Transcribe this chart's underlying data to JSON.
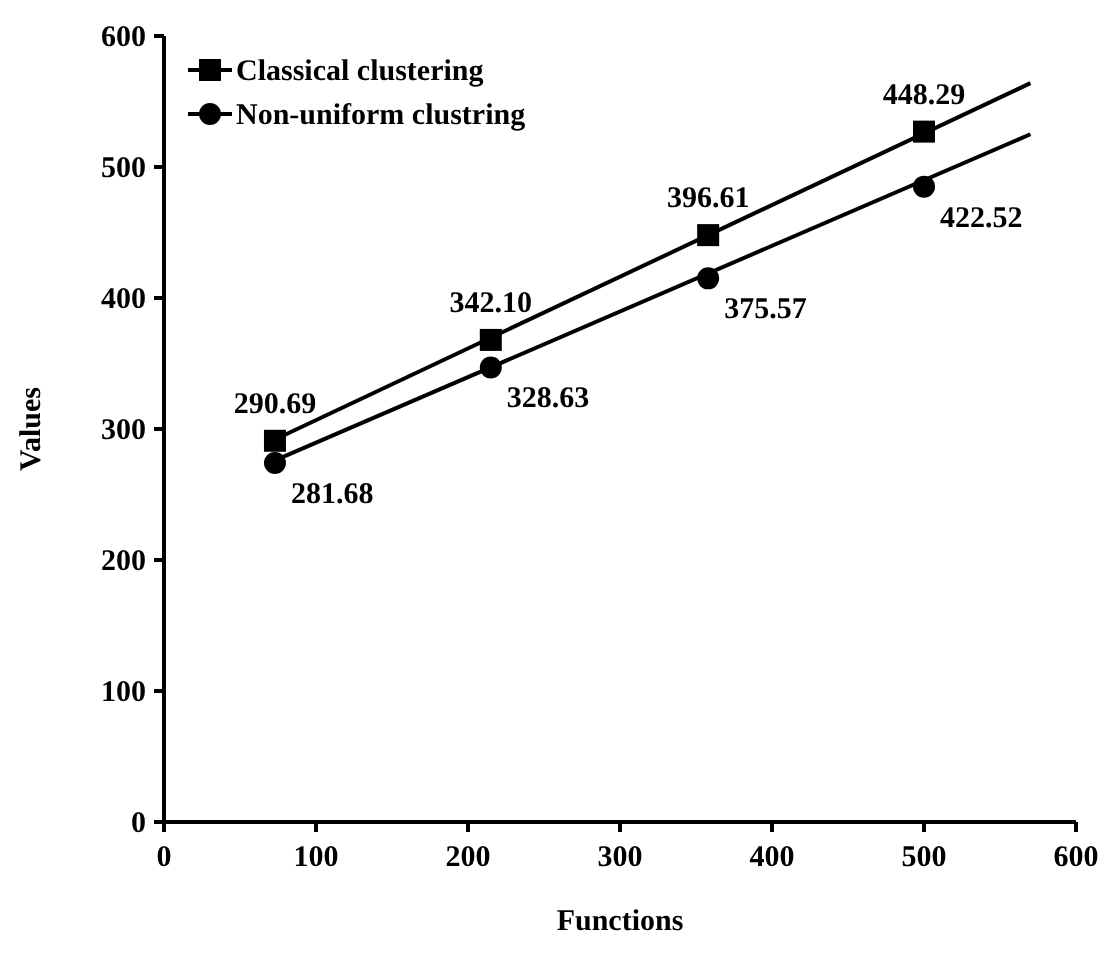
{
  "chart_data": {
    "type": "scatter",
    "xlabel": "Functions",
    "ylabel": "Values",
    "xlim": [
      0,
      600
    ],
    "xticks": [
      0,
      100,
      200,
      300,
      400,
      500,
      600
    ],
    "ylim": [
      0,
      600
    ],
    "yticks": [
      0,
      100,
      200,
      300,
      400,
      500,
      600
    ],
    "grid": false,
    "legend": "top left",
    "annotations": [
      {
        "text": "290.69",
        "x": 73,
        "y": 291
      },
      {
        "text": "342.10",
        "x": 215,
        "y": 368
      },
      {
        "text": "396.61",
        "x": 358,
        "y": 448
      },
      {
        "text": "448.29",
        "x": 500,
        "y": 527
      },
      {
        "text": "281.68",
        "x": 73,
        "y": 274
      },
      {
        "text": "328.63",
        "x": 215,
        "y": 347
      },
      {
        "text": "375.57",
        "x": 358,
        "y": 415
      },
      {
        "text": "422.52",
        "x": 500,
        "y": 485
      }
    ],
    "series": [
      {
        "name": "Classical clustering",
        "color": "#000000",
        "marker": "square",
        "x": [
          73,
          215,
          358,
          500
        ],
        "values": [
          291,
          368,
          448,
          527
        ]
      },
      {
        "name": "Non-uniform clustring",
        "color": "#000000",
        "marker": "circle",
        "x": [
          73,
          215,
          358,
          500
        ],
        "values": [
          274,
          347,
          415,
          485
        ]
      },
      {
        "type": "line",
        "color": "#000000",
        "marker": "none",
        "x": [
          73,
          570
        ],
        "values": [
          292,
          564
        ]
      },
      {
        "type": "line",
        "color": "#000000",
        "marker": "none",
        "x": [
          73,
          570
        ],
        "values": [
          276,
          525
        ]
      }
    ]
  }
}
